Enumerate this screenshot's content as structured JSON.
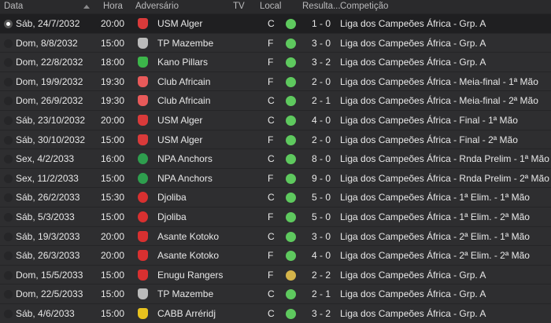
{
  "columns": {
    "date": "Data",
    "time": "Hora",
    "opponent": "Adversário",
    "tv": "TV",
    "venue": "Local",
    "result": "Resulta...",
    "competition": "Competição"
  },
  "colors": {
    "win": "#5ec95e",
    "draw": "#d4b44a"
  },
  "matches": [
    {
      "date": "Sáb, 24/7/2032",
      "time": "20:00",
      "opponent": "USM Alger",
      "crest": "#d93a3a",
      "venue": "C",
      "outcome": "win",
      "score": "1 - 0",
      "competition": "Liga dos Campeões África - Grp. A",
      "selected": true
    },
    {
      "date": "Dom, 8/8/2032",
      "time": "15:00",
      "opponent": "TP Mazembe",
      "crest": "#bbbbbb",
      "venue": "F",
      "outcome": "win",
      "score": "3 - 0",
      "competition": "Liga dos Campeões África - Grp. A"
    },
    {
      "date": "Dom, 22/8/2032",
      "time": "18:00",
      "opponent": "Kano Pillars",
      "crest": "#3cb64a",
      "venue": "F",
      "outcome": "win",
      "score": "3 - 2",
      "competition": "Liga dos Campeões África - Grp. A"
    },
    {
      "date": "Dom, 19/9/2032",
      "time": "19:30",
      "opponent": "Club Africain",
      "crest": "#e85a5a",
      "venue": "F",
      "outcome": "win",
      "score": "2 - 0",
      "competition": "Liga dos Campeões África - Meia-final - 1ª Mão"
    },
    {
      "date": "Dom, 26/9/2032",
      "time": "19:30",
      "opponent": "Club Africain",
      "crest": "#e85a5a",
      "venue": "C",
      "outcome": "win",
      "score": "2 - 1",
      "competition": "Liga dos Campeões África - Meia-final - 2ª Mão"
    },
    {
      "date": "Sáb, 23/10/2032",
      "time": "20:00",
      "opponent": "USM Alger",
      "crest": "#d93a3a",
      "venue": "C",
      "outcome": "win",
      "score": "4 - 0",
      "competition": "Liga dos Campeões África - Final - 1ª Mão"
    },
    {
      "date": "Sáb, 30/10/2032",
      "time": "15:00",
      "opponent": "USM Alger",
      "crest": "#d93a3a",
      "venue": "F",
      "outcome": "win",
      "score": "2 - 0",
      "competition": "Liga dos Campeões África - Final - 2ª Mão"
    },
    {
      "date": "Sex, 4/2/2033",
      "time": "16:00",
      "opponent": "NPA Anchors",
      "crest": "#2e9e4e",
      "venue": "C",
      "outcome": "win",
      "score": "8 - 0",
      "competition": "Liga dos Campeões África - Rnda Prelim - 1ª Mão",
      "round": true
    },
    {
      "date": "Sex, 11/2/2033",
      "time": "15:00",
      "opponent": "NPA Anchors",
      "crest": "#2e9e4e",
      "venue": "F",
      "outcome": "win",
      "score": "9 - 0",
      "competition": "Liga dos Campeões África - Rnda Prelim - 2ª Mão",
      "round": true
    },
    {
      "date": "Sáb, 26/2/2033",
      "time": "15:30",
      "opponent": "Djoliba",
      "crest": "#d83030",
      "venue": "C",
      "outcome": "win",
      "score": "5 - 0",
      "competition": "Liga dos Campeões África - 1ª Elim. - 1ª Mão",
      "round": true
    },
    {
      "date": "Sáb, 5/3/2033",
      "time": "15:00",
      "opponent": "Djoliba",
      "crest": "#d83030",
      "venue": "F",
      "outcome": "win",
      "score": "5 - 0",
      "competition": "Liga dos Campeões África - 1ª Elim. - 2ª Mão",
      "round": true
    },
    {
      "date": "Sáb, 19/3/2033",
      "time": "20:00",
      "opponent": "Asante Kotoko",
      "crest": "#d83030",
      "venue": "C",
      "outcome": "win",
      "score": "3 - 0",
      "competition": "Liga dos Campeões África - 2ª Elim. - 1ª Mão"
    },
    {
      "date": "Sáb, 26/3/2033",
      "time": "20:00",
      "opponent": "Asante Kotoko",
      "crest": "#d83030",
      "venue": "F",
      "outcome": "win",
      "score": "4 - 0",
      "competition": "Liga dos Campeões África - 2ª Elim. - 2ª Mão"
    },
    {
      "date": "Dom, 15/5/2033",
      "time": "15:00",
      "opponent": "Enugu Rangers",
      "crest": "#d83030",
      "venue": "F",
      "outcome": "draw",
      "score": "2 - 2",
      "competition": "Liga dos Campeões África - Grp. A"
    },
    {
      "date": "Dom, 22/5/2033",
      "time": "15:00",
      "opponent": "TP Mazembe",
      "crest": "#bbbbbb",
      "venue": "C",
      "outcome": "win",
      "score": "2 - 1",
      "competition": "Liga dos Campeões África - Grp. A"
    },
    {
      "date": "Sáb, 4/6/2033",
      "time": "15:00",
      "opponent": "CABB Arréridj",
      "crest": "#e8c21e",
      "venue": "C",
      "outcome": "win",
      "score": "3 - 2",
      "competition": "Liga dos Campeões África - Grp. A"
    }
  ]
}
